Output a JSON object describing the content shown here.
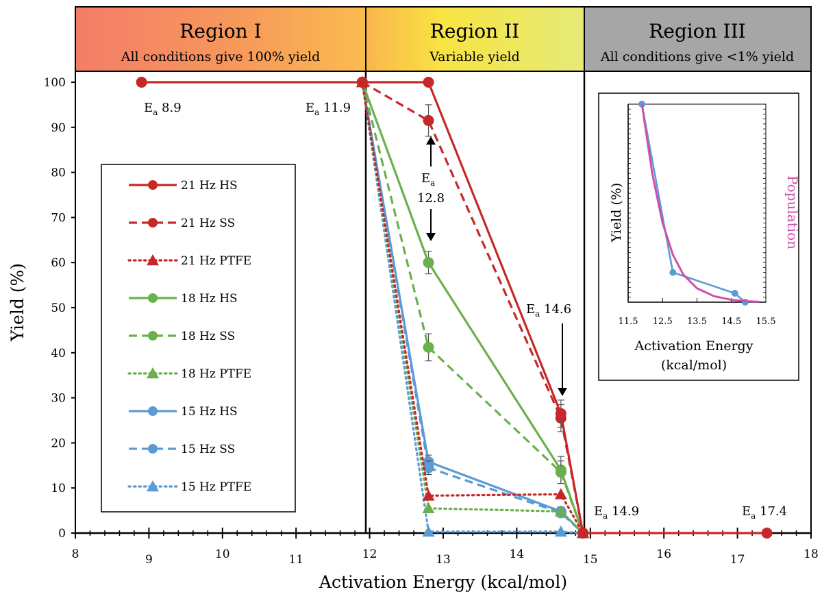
{
  "chart_data": {
    "type": "line",
    "xlabel": "Activation Energy (kcal/mol)",
    "ylabel": "Yield (%)",
    "xlim": [
      8,
      18
    ],
    "ylim": [
      0,
      100
    ],
    "xticks": [
      8,
      9,
      10,
      11,
      12,
      13,
      14,
      15,
      16,
      17,
      18
    ],
    "yticks": [
      0,
      10,
      20,
      30,
      40,
      50,
      60,
      70,
      80,
      90,
      100
    ],
    "grid": false,
    "legend_position": "left",
    "regions": [
      {
        "title": "Region I",
        "subtitle": "All conditions give 100% yield",
        "x_range": [
          8,
          11.9
        ],
        "colors": [
          "#f47c68",
          "#f79b5a",
          "#fbbc4f"
        ]
      },
      {
        "title": "Region II",
        "subtitle": "Variable yield",
        "x_range": [
          11.9,
          14.9
        ],
        "colors": [
          "#fbb54c",
          "#f8e443",
          "#e5ea78"
        ]
      },
      {
        "title": "Region III",
        "subtitle": "All conditions give <1% yield",
        "x_range": [
          14.9,
          18
        ],
        "colors": [
          "#a6a6a6",
          "#a6a6a6",
          "#a6a6a6"
        ]
      }
    ],
    "series": [
      {
        "name": "21 Hz HS",
        "color": "#c62828",
        "style": "solid",
        "marker": "circle",
        "x": [
          8.9,
          11.9,
          12.8,
          14.6,
          14.9,
          17.4
        ],
        "y": [
          100,
          100,
          100,
          26.5,
          0,
          0
        ],
        "err": [
          0,
          0,
          0,
          3,
          0,
          0
        ]
      },
      {
        "name": "21 Hz SS",
        "color": "#c62828",
        "style": "dashed",
        "marker": "circle",
        "x": [
          11.9,
          12.8,
          14.6,
          14.9
        ],
        "y": [
          100,
          91.5,
          25.5,
          0
        ],
        "err": [
          0,
          3.5,
          3,
          0
        ]
      },
      {
        "name": "21 Hz PTFE",
        "color": "#c62828",
        "style": "dotted",
        "marker": "triangle",
        "x": [
          11.9,
          12.8,
          14.6,
          14.9
        ],
        "y": [
          100,
          8.3,
          8.6,
          0
        ],
        "err": [
          0,
          0,
          0,
          0
        ]
      },
      {
        "name": "18 Hz HS",
        "color": "#6ab04c",
        "style": "solid",
        "marker": "circle",
        "x": [
          11.9,
          12.8,
          14.6,
          14.9
        ],
        "y": [
          100,
          60,
          14,
          0
        ],
        "err": [
          0,
          2.5,
          3,
          0
        ]
      },
      {
        "name": "18 Hz SS",
        "color": "#6ab04c",
        "style": "dashed",
        "marker": "circle",
        "x": [
          11.9,
          12.8,
          14.6,
          14.9
        ],
        "y": [
          100,
          41.2,
          13.5,
          0
        ],
        "err": [
          0,
          3,
          2.5,
          0
        ]
      },
      {
        "name": "18 Hz PTFE",
        "color": "#6ab04c",
        "style": "dotted",
        "marker": "triangle",
        "x": [
          11.9,
          12.8,
          14.6,
          14.9
        ],
        "y": [
          100,
          5.5,
          4.8,
          0
        ],
        "err": [
          0,
          0,
          0,
          0
        ]
      },
      {
        "name": "15 Hz HS",
        "color": "#5b9bd5",
        "style": "solid",
        "marker": "circle",
        "x": [
          11.9,
          12.8,
          14.6,
          14.9
        ],
        "y": [
          100,
          15.8,
          4.8,
          0
        ],
        "err": [
          0,
          1.5,
          1,
          0
        ]
      },
      {
        "name": "15 Hz SS",
        "color": "#5b9bd5",
        "style": "dashed",
        "marker": "circle",
        "x": [
          11.9,
          12.8,
          14.6,
          14.9
        ],
        "y": [
          100,
          14.5,
          4.5,
          0
        ],
        "err": [
          0,
          1.5,
          1,
          0
        ]
      },
      {
        "name": "15 Hz PTFE",
        "color": "#5b9bd5",
        "style": "dotted",
        "marker": "triangle",
        "x": [
          11.9,
          12.8,
          14.6,
          14.9
        ],
        "y": [
          100,
          0.3,
          0.3,
          0
        ],
        "err": [
          0,
          0,
          0,
          0
        ]
      }
    ],
    "annotations": [
      {
        "text": "E",
        "sub": "a",
        "rest": " 8.9"
      },
      {
        "text": "E",
        "sub": "a",
        "rest": " 11.9"
      },
      {
        "text": "E",
        "sub": "a",
        "rest": ""
      },
      {
        "text": "12.8",
        "sub": "",
        "rest": ""
      },
      {
        "text": "E",
        "sub": "a",
        "rest": " 14.6"
      },
      {
        "text": "E",
        "sub": "a",
        "rest": " 14.9"
      },
      {
        "text": "E",
        "sub": "a",
        "rest": " 17.4"
      }
    ],
    "inset": {
      "type": "line",
      "xlabel": "Activation Energy",
      "xlabel2": "(kcal/mol)",
      "ylabel": "Yield (%)",
      "xlim": [
        11.5,
        15.5
      ],
      "xticks": [
        "11.5",
        "12.5",
        "13.5",
        "14.5",
        "15.5"
      ],
      "series": [
        {
          "name": "",
          "color": "#5b9bd5",
          "x": [
            11.9,
            12.8,
            14.6,
            14.9
          ],
          "y": [
            100,
            15,
            4.5,
            0
          ]
        },
        {
          "name": "Population",
          "color": "#d04fa9",
          "x": [
            11.9,
            12.2,
            12.5,
            12.8,
            13.1,
            13.5,
            14.0,
            14.5,
            14.9,
            15.3
          ],
          "y": [
            100,
            65,
            40,
            24,
            14,
            7,
            3,
            1.2,
            0.5,
            0.2
          ]
        }
      ]
    }
  }
}
